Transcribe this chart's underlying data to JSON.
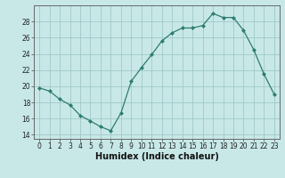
{
  "x": [
    0,
    1,
    2,
    3,
    4,
    5,
    6,
    7,
    8,
    9,
    10,
    11,
    12,
    13,
    14,
    15,
    16,
    17,
    18,
    19,
    20,
    21,
    22,
    23
  ],
  "y": [
    19.8,
    19.4,
    18.4,
    17.7,
    16.4,
    15.7,
    15.0,
    14.5,
    16.7,
    20.6,
    22.3,
    23.9,
    25.6,
    26.6,
    27.2,
    27.2,
    27.5,
    29.0,
    28.5,
    28.5,
    26.9,
    24.5,
    21.5,
    19.0
  ],
  "line_color": "#2E7D6E",
  "marker": "D",
  "marker_size": 2.0,
  "bg_color": "#C8E8E8",
  "grid_color": "#A0C8C8",
  "xlabel": "Humidex (Indice chaleur)",
  "ylabel": "",
  "xlim": [
    -0.5,
    23.5
  ],
  "ylim": [
    13.5,
    30.0
  ],
  "yticks": [
    14,
    16,
    18,
    20,
    22,
    24,
    26,
    28
  ],
  "xticks": [
    0,
    1,
    2,
    3,
    4,
    5,
    6,
    7,
    8,
    9,
    10,
    11,
    12,
    13,
    14,
    15,
    16,
    17,
    18,
    19,
    20,
    21,
    22,
    23
  ],
  "tick_fontsize": 5.5,
  "xlabel_fontsize": 7.0,
  "linewidth": 0.9
}
